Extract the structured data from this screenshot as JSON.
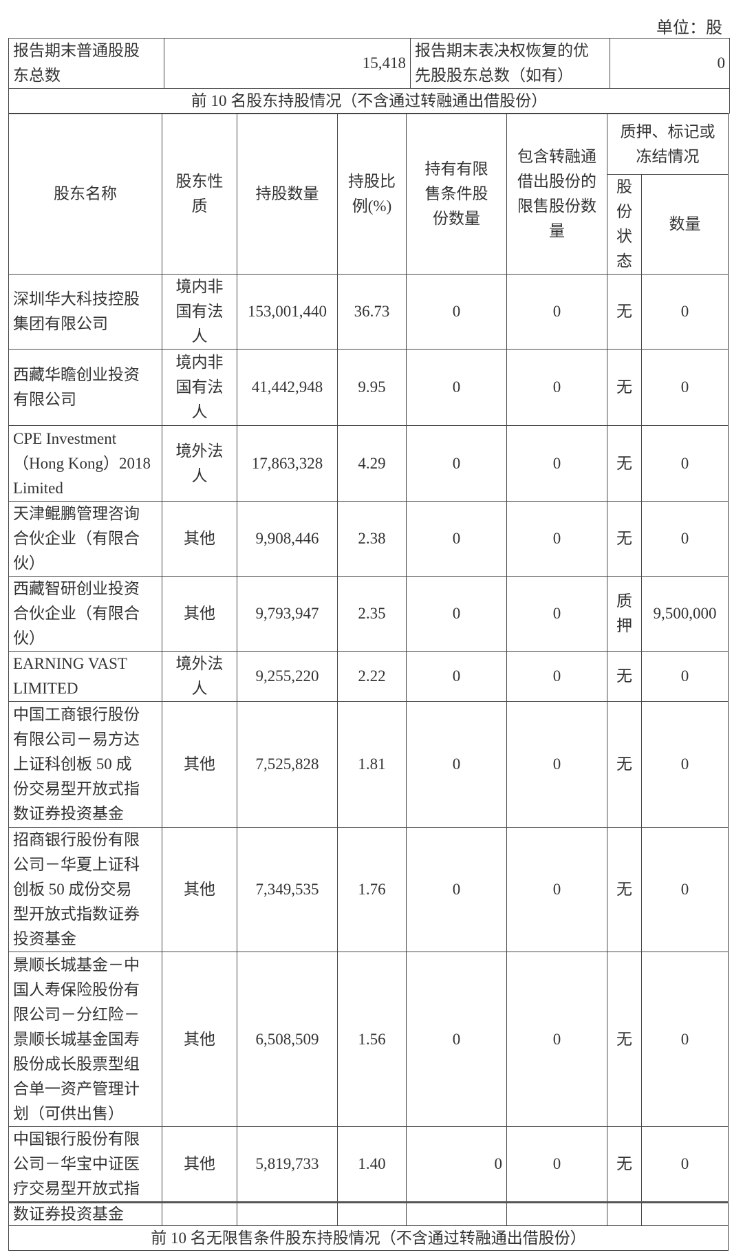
{
  "unit_label": "单位：股",
  "summary": {
    "common_label": "报告期末普通股股\n东总数",
    "common_value": "15,418",
    "preferred_label": "报告期末表决权恢复的优\n先股股东总数（如有）",
    "preferred_value": "0"
  },
  "section_top10": "前 10 名股东持股情况（不含通过转融通出借股份）",
  "headers": {
    "name": "股东名称",
    "nature": "股东性\n质",
    "shares": "持股数量",
    "ratio": "持股比\n例(%)",
    "restricted": "持有有限\n售条件股\n份数量",
    "lent": "包含转融通\n借出股份的\n限售股份数\n量",
    "pledge": "质押、标记或\n冻结情况",
    "pledge_status": "股\n份\n状\n态",
    "pledge_qty": "数量"
  },
  "rows": [
    {
      "name": "深圳华大科技控股\n集团有限公司",
      "nature": "境内非\n国有法\n人",
      "shares": "153,001,440",
      "ratio": "36.73",
      "restricted": "0",
      "lent": "0",
      "status": "无",
      "qty": "0"
    },
    {
      "name": "西藏华瞻创业投资\n有限公司",
      "nature": "境内非\n国有法\n人",
      "shares": "41,442,948",
      "ratio": "9.95",
      "restricted": "0",
      "lent": "0",
      "status": "无",
      "qty": "0"
    },
    {
      "name": "CPE Investment\n（Hong Kong）2018\nLimited",
      "nature": "境外法\n人",
      "shares": "17,863,328",
      "ratio": "4.29",
      "restricted": "0",
      "lent": "0",
      "status": "无",
      "qty": "0"
    },
    {
      "name": "天津鲲鹏管理咨询\n合伙企业（有限合\n伙）",
      "nature": "其他",
      "shares": "9,908,446",
      "ratio": "2.38",
      "restricted": "0",
      "lent": "0",
      "status": "无",
      "qty": "0"
    },
    {
      "name": "西藏智研创业投资\n合伙企业（有限合\n伙）",
      "nature": "其他",
      "shares": "9,793,947",
      "ratio": "2.35",
      "restricted": "0",
      "lent": "0",
      "status": "质\n押",
      "qty": "9,500,000"
    },
    {
      "name": "EARNING VAST\nLIMITED",
      "nature": "境外法\n人",
      "shares": "9,255,220",
      "ratio": "2.22",
      "restricted": "0",
      "lent": "0",
      "status": "无",
      "qty": "0"
    },
    {
      "name": "中国工商银行股份\n有限公司－易方达\n上证科创板 50 成\n份交易型开放式指\n数证券投资基金",
      "nature": "其他",
      "shares": "7,525,828",
      "ratio": "1.81",
      "restricted": "0",
      "lent": "0",
      "status": "无",
      "qty": "0"
    },
    {
      "name": "招商银行股份有限\n公司－华夏上证科\n创板 50 成份交易\n型开放式指数证券\n投资基金",
      "nature": "其他",
      "shares": "7,349,535",
      "ratio": "1.76",
      "restricted": "0",
      "lent": "0",
      "status": "无",
      "qty": "0"
    },
    {
      "name": "景顺长城基金－中\n国人寿保险股份有\n限公司－分红险－\n景顺长城基金国寿\n股份成长股票型组\n合单一资产管理计\n划（可供出售）",
      "nature": "其他",
      "shares": "6,508,509",
      "ratio": "1.56",
      "restricted": "0",
      "lent": "0",
      "status": "无",
      "qty": "0"
    },
    {
      "name": "中国银行股份有限\n公司－华宝中证医\n疗交易型开放式指",
      "nature": "其他",
      "shares": "5,819,733",
      "ratio": "1.40",
      "restricted": "0",
      "lent": "0",
      "status": "无",
      "qty": "0"
    },
    {
      "name": "数证券投资基金",
      "nature": "",
      "shares": "",
      "ratio": "",
      "restricted": "",
      "lent": "",
      "status": "",
      "qty": ""
    }
  ],
  "section_unrestricted": "前 10 名无限售条件股东持股情况（不含通过转融通出借股份）"
}
